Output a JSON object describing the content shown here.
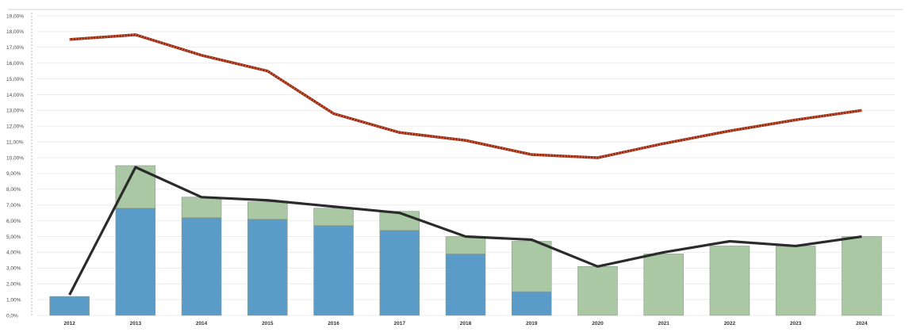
{
  "chart_data": {
    "type": "bar",
    "title": "",
    "xlabel": "",
    "ylabel": "",
    "ylim": [
      0,
      19
    ],
    "grid": true,
    "categories": [
      "2012",
      "2013",
      "2014",
      "2015",
      "2016",
      "2017",
      "2018",
      "2019",
      "2020",
      "2021",
      "2022",
      "2023",
      "2024"
    ],
    "y_ticks": [
      "0,0%",
      "1,00%",
      "2,00%",
      "3,00%",
      "4,00%",
      "5,00%",
      "6,00%",
      "7,00%",
      "8,00%",
      "9,00%",
      "10,00%",
      "11,00%",
      "12,00%",
      "13,00%",
      "14,00%",
      "15,00%",
      "16,00%",
      "17,00%",
      "18,00%",
      "19,00%"
    ],
    "series": [
      {
        "kind": "bar",
        "stack": "a",
        "color": "#5b9bc8",
        "values": [
          1.2,
          6.8,
          6.2,
          6.1,
          5.7,
          5.4,
          3.9,
          1.5,
          0,
          0,
          0,
          0,
          0
        ]
      },
      {
        "kind": "bar",
        "stack": "a",
        "color": "#a9c8a3",
        "values": [
          0,
          2.7,
          1.3,
          1.1,
          1.1,
          1.2,
          1.1,
          3.2,
          3.1,
          3.9,
          4.4,
          4.4,
          5.0
        ]
      },
      {
        "kind": "line",
        "color": "#2b2b2b",
        "values": [
          1.3,
          9.4,
          7.5,
          7.3,
          6.9,
          6.5,
          5.0,
          4.8,
          3.1,
          4.0,
          4.7,
          4.4,
          5.0
        ]
      },
      {
        "kind": "line",
        "style": "dotted",
        "color": "#d9502a",
        "values": [
          17.5,
          17.8,
          16.5,
          15.5,
          12.8,
          11.6,
          11.1,
          10.2,
          10.0,
          10.9,
          11.7,
          12.4,
          13.0
        ]
      }
    ]
  }
}
